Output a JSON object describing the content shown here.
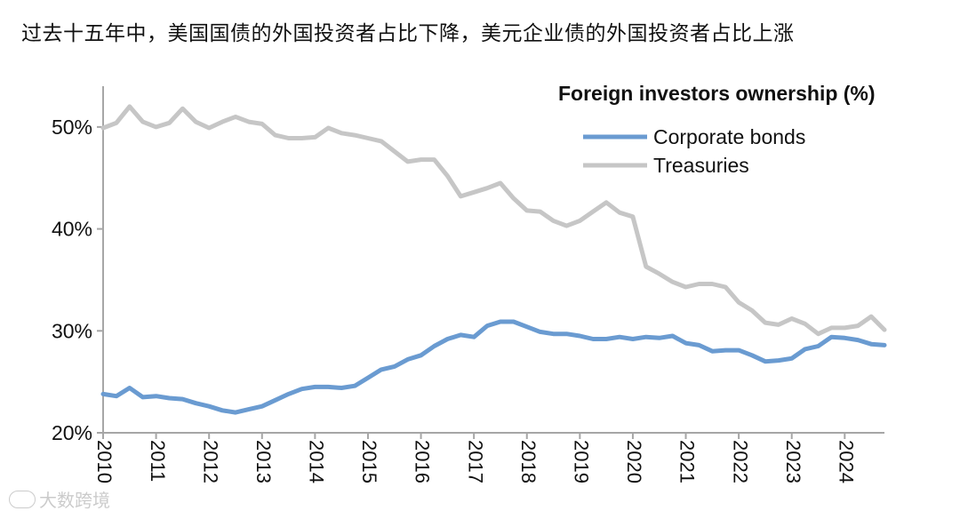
{
  "headline": "过去十五年中，美国国债的外国投资者占比下降，美元企业债的外国投资者占比上涨",
  "watermark": "大数跨境",
  "chart_data": {
    "type": "line",
    "title": "Foreign investors ownership (%)",
    "xlabel": "",
    "ylabel": "",
    "x_tick_labels": [
      "2010",
      "2011",
      "2012",
      "2013",
      "2014",
      "2015",
      "2016",
      "2017",
      "2018",
      "2019",
      "2020",
      "2021",
      "2022",
      "2023",
      "2024"
    ],
    "y_tick_labels": [
      "20%",
      "30%",
      "40%",
      "50%"
    ],
    "y_ticks": [
      20,
      30,
      40,
      50
    ],
    "ylim": [
      20,
      54
    ],
    "xlim": [
      2010.0,
      2024.75
    ],
    "grid": false,
    "legend_position": "top-right",
    "colors": {
      "Corporate bonds": "#6a9bd1",
      "Treasuries": "#c6c6c6"
    },
    "x": [
      2010.0,
      2010.25,
      2010.5,
      2010.75,
      2011.0,
      2011.25,
      2011.5,
      2011.75,
      2012.0,
      2012.25,
      2012.5,
      2012.75,
      2013.0,
      2013.25,
      2013.5,
      2013.75,
      2014.0,
      2014.25,
      2014.5,
      2014.75,
      2015.0,
      2015.25,
      2015.5,
      2015.75,
      2016.0,
      2016.25,
      2016.5,
      2016.75,
      2017.0,
      2017.25,
      2017.5,
      2017.75,
      2018.0,
      2018.25,
      2018.5,
      2018.75,
      2019.0,
      2019.25,
      2019.5,
      2019.75,
      2020.0,
      2020.25,
      2020.5,
      2020.75,
      2021.0,
      2021.25,
      2021.5,
      2021.75,
      2022.0,
      2022.25,
      2022.5,
      2022.75,
      2023.0,
      2023.25,
      2023.5,
      2023.75,
      2024.0,
      2024.25,
      2024.5,
      2024.75
    ],
    "series": [
      {
        "name": "Corporate bonds",
        "values": [
          23.8,
          23.6,
          24.4,
          23.5,
          23.6,
          23.4,
          23.3,
          22.9,
          22.6,
          22.2,
          22.0,
          22.3,
          22.6,
          23.2,
          23.8,
          24.3,
          24.5,
          24.5,
          24.4,
          24.6,
          25.4,
          26.2,
          26.5,
          27.2,
          27.6,
          28.5,
          29.2,
          29.6,
          29.4,
          30.5,
          30.9,
          30.9,
          30.4,
          29.9,
          29.7,
          29.7,
          29.5,
          29.2,
          29.2,
          29.4,
          29.2,
          29.4,
          29.3,
          29.5,
          28.8,
          28.6,
          28.0,
          28.1,
          28.1,
          27.6,
          27.0,
          27.1,
          27.3,
          28.2,
          28.5,
          29.4,
          29.3,
          29.1,
          28.7,
          28.6
        ]
      },
      {
        "name": "Treasuries",
        "values": [
          49.9,
          50.4,
          52.0,
          50.5,
          50.0,
          50.4,
          51.8,
          50.5,
          49.9,
          50.5,
          51.0,
          50.5,
          50.3,
          49.2,
          48.9,
          48.9,
          49.0,
          49.9,
          49.4,
          49.2,
          48.9,
          48.6,
          47.6,
          46.6,
          46.8,
          46.8,
          45.2,
          43.2,
          43.6,
          44.0,
          44.5,
          43.0,
          41.8,
          41.7,
          40.8,
          40.3,
          40.8,
          41.7,
          42.6,
          41.6,
          41.2,
          36.3,
          35.6,
          34.8,
          34.3,
          34.6,
          34.6,
          34.3,
          32.8,
          32.0,
          30.8,
          30.6,
          31.2,
          30.7,
          29.7,
          30.3,
          30.3,
          30.5,
          31.4,
          30.1
        ]
      }
    ]
  }
}
